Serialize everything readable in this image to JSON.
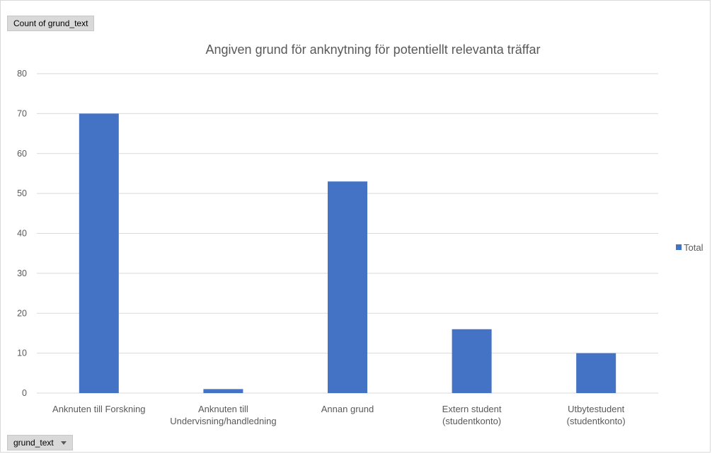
{
  "pivot": {
    "value_field_label": "Count of grund_text",
    "axis_field_label": "grund_text"
  },
  "colors": {
    "series": "#4472C4",
    "grid": "#d9d9d9",
    "text": "#595959"
  },
  "chart_data": {
    "type": "bar",
    "title": "Angiven grund för anknytning för potentiellt relevanta träffar",
    "xlabel": "",
    "ylabel": "",
    "categories": [
      [
        "Anknuten till Forskning"
      ],
      [
        "Anknuten till",
        "Undervisning/handledning"
      ],
      [
        "Annan grund"
      ],
      [
        "Extern student",
        "(studentkonto)"
      ],
      [
        "Utbytestudent",
        "(studentkonto)"
      ]
    ],
    "series": [
      {
        "name": "Total",
        "values": [
          70,
          1,
          53,
          16,
          10
        ]
      }
    ],
    "ylim": [
      0,
      80
    ],
    "yticks": [
      0,
      10,
      20,
      30,
      40,
      50,
      60,
      70,
      80
    ],
    "grid": true,
    "legend": "right"
  }
}
